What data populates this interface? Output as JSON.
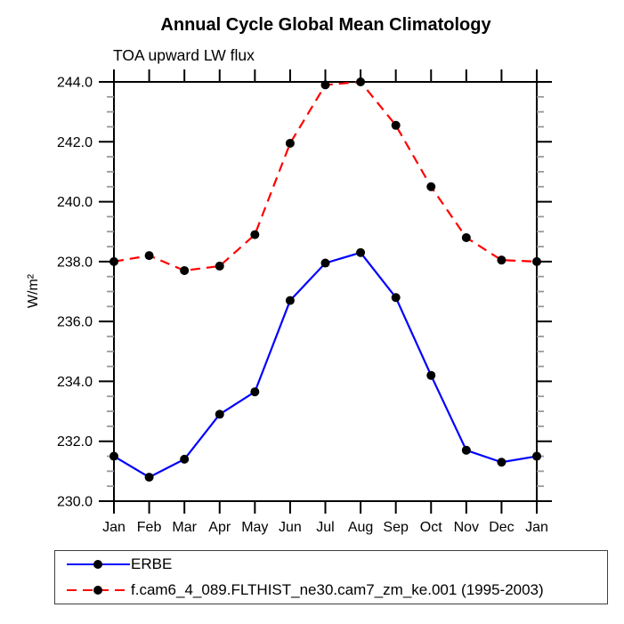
{
  "page": {
    "background": "#ffffff"
  },
  "chart_data": {
    "type": "line",
    "title": "Annual Cycle Global Mean Climatology",
    "subtitle": "TOA upward LW flux",
    "ylabel": "W/m²",
    "xlabel": "",
    "x_categories": [
      "Jan",
      "Feb",
      "Mar",
      "Apr",
      "May",
      "Jun",
      "Jul",
      "Aug",
      "Sep",
      "Oct",
      "Nov",
      "Dec",
      "Jan"
    ],
    "ylim": [
      230.0,
      244.0
    ],
    "ytick_major": 2.0,
    "ytick_minor": 0.5,
    "ytick_label_format": "one-decimal",
    "grid": "off",
    "legend_position": "bottom-left",
    "axis_color": "#000000",
    "minor_tick_color": "#999999",
    "series": [
      {
        "name": "ERBE",
        "color": "#0000ff",
        "line_style": "solid",
        "marker": "circle",
        "marker_color": "#000000",
        "values": [
          231.5,
          230.8,
          231.4,
          232.9,
          233.65,
          236.7,
          237.95,
          238.3,
          236.8,
          234.2,
          231.7,
          231.3,
          231.5
        ]
      },
      {
        "name": "f.cam6_4_089.FLTHIST_ne30.cam7_zm_ke.001 (1995-2003)",
        "color": "#ff0000",
        "line_style": "dashed",
        "marker": "circle",
        "marker_color": "#000000",
        "values": [
          238.0,
          238.2,
          237.7,
          237.85,
          238.9,
          241.95,
          243.9,
          244.0,
          242.55,
          240.5,
          238.8,
          238.05,
          238.0
        ]
      }
    ]
  }
}
